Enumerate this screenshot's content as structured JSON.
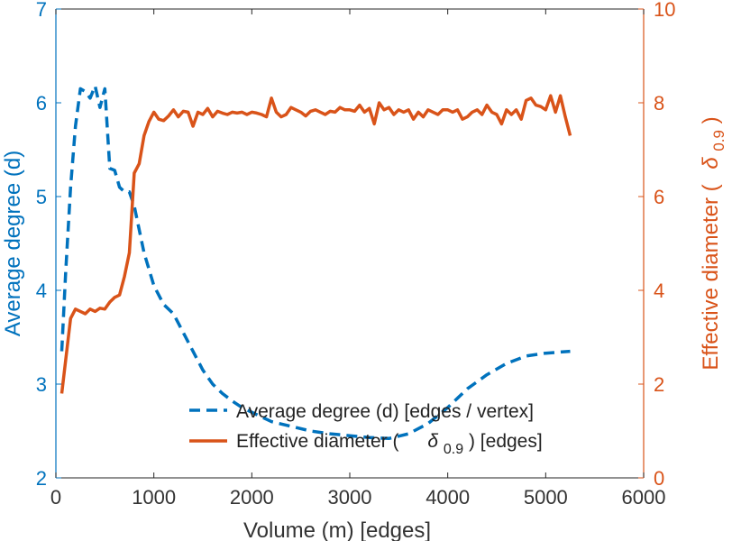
{
  "chart_data": {
    "type": "line",
    "title": "",
    "xlabel": "Volume (m) [edges]",
    "xlim": [
      0,
      6000
    ],
    "xticks": [
      0,
      1000,
      2000,
      3000,
      4000,
      5000,
      6000
    ],
    "ylabel_left": "Average degree (d)",
    "ylim_left": [
      2,
      7
    ],
    "yticks_left": [
      2,
      3,
      4,
      5,
      6,
      7
    ],
    "ylabel_right_prefix": "Effective diameter (",
    "ylabel_right_symbol": "δ",
    "ylabel_right_sub": "0.9",
    "ylabel_right_suffix": ")",
    "ylim_right": [
      0,
      10
    ],
    "yticks_right": [
      0,
      2,
      4,
      6,
      8,
      10
    ],
    "grid": false,
    "legend_position": "bottom-right",
    "colors": {
      "left": "#0072bd",
      "right": "#d95319",
      "axis_text": "#333333"
    },
    "series": [
      {
        "name": "Average degree (d) [edges / vertex]",
        "axis": "left",
        "style": "dashed",
        "color": "#0072bd",
        "x": [
          60,
          100,
          150,
          200,
          250,
          300,
          350,
          400,
          450,
          500,
          550,
          600,
          650,
          700,
          750,
          800,
          900,
          1000,
          1100,
          1200,
          1300,
          1400,
          1500,
          1600,
          1700,
          1800,
          1900,
          2000,
          2200,
          2400,
          2600,
          2800,
          3000,
          3200,
          3400,
          3600,
          3800,
          4000,
          4200,
          4400,
          4600,
          4800,
          5000,
          5250
        ],
        "values": [
          3.35,
          4.2,
          5.1,
          5.75,
          6.15,
          6.12,
          6.05,
          6.18,
          5.95,
          6.15,
          5.3,
          5.28,
          5.1,
          5.05,
          5.05,
          4.9,
          4.4,
          4.05,
          3.85,
          3.75,
          3.55,
          3.35,
          3.15,
          3.0,
          2.9,
          2.82,
          2.75,
          2.7,
          2.6,
          2.55,
          2.5,
          2.47,
          2.45,
          2.43,
          2.42,
          2.47,
          2.58,
          2.75,
          2.95,
          3.1,
          3.22,
          3.3,
          3.33,
          3.35
        ]
      },
      {
        "name": "Effective diameter (δ0.9) [edges]",
        "legend_prefix": "Effective diameter (",
        "legend_symbol": "δ",
        "legend_sub": "0.9",
        "legend_suffix": ") [edges]",
        "axis": "right",
        "style": "solid",
        "color": "#d95319",
        "x": [
          60,
          150,
          200,
          250,
          300,
          350,
          400,
          450,
          500,
          550,
          600,
          650,
          700,
          750,
          800,
          850,
          900,
          950,
          1000,
          1050,
          1100,
          1150,
          1200,
          1250,
          1300,
          1350,
          1400,
          1450,
          1500,
          1550,
          1600,
          1650,
          1700,
          1750,
          1800,
          1850,
          1900,
          1950,
          2000,
          2050,
          2100,
          2150,
          2200,
          2250,
          2300,
          2350,
          2400,
          2450,
          2500,
          2550,
          2600,
          2650,
          2700,
          2750,
          2800,
          2850,
          2900,
          2950,
          3000,
          3050,
          3100,
          3150,
          3200,
          3250,
          3300,
          3350,
          3400,
          3450,
          3500,
          3550,
          3600,
          3650,
          3700,
          3750,
          3800,
          3850,
          3900,
          3950,
          4000,
          4050,
          4100,
          4150,
          4200,
          4250,
          4300,
          4350,
          4400,
          4450,
          4500,
          4550,
          4600,
          4650,
          4700,
          4750,
          4800,
          4850,
          4900,
          4950,
          5000,
          5050,
          5100,
          5150,
          5200,
          5250
        ],
        "values": [
          1.8,
          3.4,
          3.6,
          3.55,
          3.5,
          3.6,
          3.55,
          3.62,
          3.6,
          3.75,
          3.85,
          3.9,
          4.3,
          4.8,
          6.5,
          6.7,
          7.3,
          7.6,
          7.8,
          7.65,
          7.62,
          7.72,
          7.85,
          7.7,
          7.82,
          7.8,
          7.5,
          7.8,
          7.75,
          7.88,
          7.7,
          7.82,
          7.78,
          7.75,
          7.8,
          7.78,
          7.8,
          7.75,
          7.8,
          7.78,
          7.75,
          7.7,
          8.1,
          7.8,
          7.7,
          7.75,
          7.9,
          7.85,
          7.8,
          7.72,
          7.82,
          7.85,
          7.8,
          7.75,
          7.82,
          7.8,
          7.9,
          7.85,
          7.85,
          7.82,
          7.95,
          7.8,
          7.88,
          7.55,
          8.0,
          7.85,
          7.9,
          7.75,
          7.85,
          7.8,
          7.85,
          7.65,
          7.8,
          7.7,
          7.85,
          7.8,
          7.75,
          7.85,
          7.85,
          7.8,
          7.85,
          7.65,
          7.7,
          7.8,
          7.85,
          7.75,
          7.95,
          7.8,
          7.75,
          7.55,
          7.85,
          7.75,
          7.85,
          7.65,
          8.05,
          8.1,
          7.95,
          7.92,
          7.85,
          8.15,
          7.8,
          8.15,
          7.7,
          7.3
        ]
      }
    ]
  }
}
